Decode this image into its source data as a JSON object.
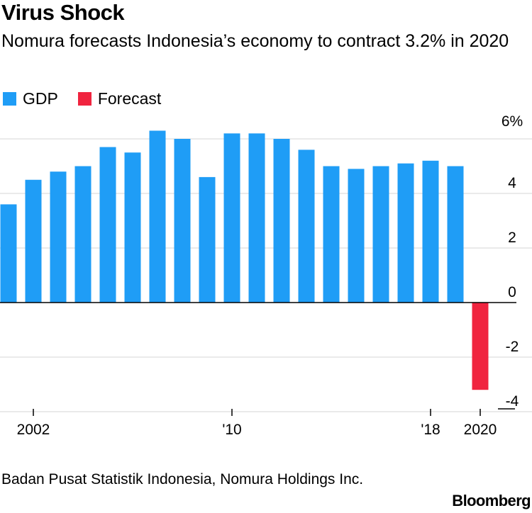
{
  "title": "Virus Shock",
  "subtitle": "Nomura forecasts Indonesia’s economy to contract 3.2% in 2020",
  "legend": [
    {
      "label": "GDP",
      "color": "#1f9df6"
    },
    {
      "label": "Forecast",
      "color": "#f0243f"
    }
  ],
  "source": "Badan Pusat Statistik Indonesia, Nomura Holdings Inc.",
  "brand": "Bloomberg",
  "chart_data": {
    "type": "bar",
    "title": "Virus Shock",
    "subtitle": "Nomura forecasts Indonesia’s economy to contract 3.2% in 2020",
    "xlabel": "",
    "ylabel": "",
    "ylim": [
      -4,
      6
    ],
    "y_ticks": [
      -4,
      -2,
      0,
      2,
      4
    ],
    "y_tick_labels": [
      "-4",
      "-2",
      "0",
      "2",
      "4"
    ],
    "top_tick_label": "6%",
    "grid": true,
    "legend_position": "top-left",
    "categories": [
      "2001",
      "2002",
      "2003",
      "2004",
      "2005",
      "2006",
      "2007",
      "2008",
      "2009",
      "2010",
      "2011",
      "2012",
      "2013",
      "2014",
      "2015",
      "2016",
      "2017",
      "2018",
      "2019",
      "2020"
    ],
    "series": [
      {
        "name": "GDP",
        "color": "#1f9df6",
        "values": [
          3.6,
          4.5,
          4.8,
          5.0,
          5.7,
          5.5,
          6.3,
          6.0,
          4.6,
          6.2,
          6.2,
          6.0,
          5.6,
          5.0,
          4.9,
          5.0,
          5.1,
          5.2,
          5.0,
          null
        ]
      },
      {
        "name": "Forecast",
        "color": "#f0243f",
        "values": [
          null,
          null,
          null,
          null,
          null,
          null,
          null,
          null,
          null,
          null,
          null,
          null,
          null,
          null,
          null,
          null,
          null,
          null,
          null,
          -3.2
        ]
      }
    ],
    "x_tick_labels": [
      {
        "category": "2002",
        "label": "2002"
      },
      {
        "category": "2010",
        "label": "'10"
      },
      {
        "category": "2018",
        "label": "'18"
      },
      {
        "category": "2020",
        "label": "2020"
      }
    ]
  }
}
